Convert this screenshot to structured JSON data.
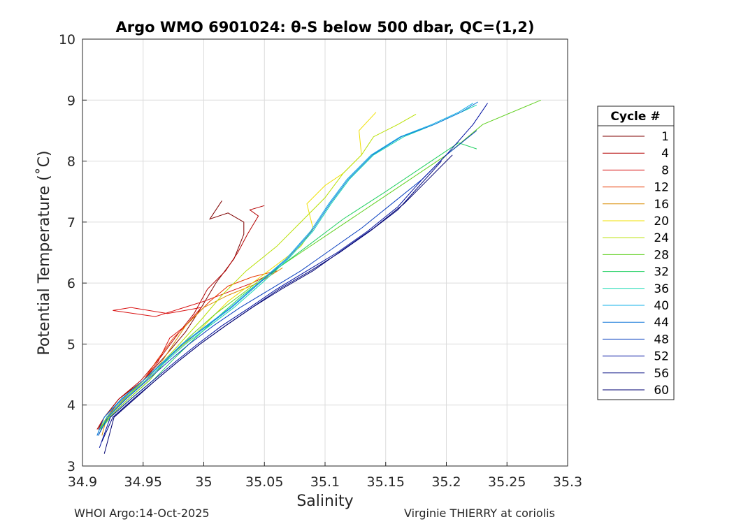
{
  "chart_data": {
    "type": "line",
    "title": "Argo WMO 6901024: θ-S below 500 dbar,  QC=(1,2)",
    "xlabel": "Salinity",
    "ylabel": "Potential Temperature (˚C)",
    "xlim": [
      34.9,
      35.3
    ],
    "ylim": [
      3,
      10
    ],
    "x_ticks": [
      "34.9",
      "34.95",
      "35",
      "35.05",
      "35.1",
      "35.15",
      "35.2",
      "35.25",
      "35.3"
    ],
    "y_ticks": [
      "3",
      "4",
      "5",
      "6",
      "7",
      "8",
      "9",
      "10"
    ],
    "grid": true,
    "legend": {
      "title": "Cycle #",
      "placement": "right-outside",
      "entries": [
        "1",
        "4",
        "8",
        "12",
        "16",
        "20",
        "24",
        "28",
        "32",
        "36",
        "40",
        "44",
        "48",
        "52",
        "56",
        "60"
      ]
    },
    "colors": [
      "#7f0000",
      "#b40000",
      "#d81010",
      "#e83a00",
      "#d98c00",
      "#f0e000",
      "#b8e000",
      "#60d020",
      "#20d060",
      "#10d8b0",
      "#10b0e8",
      "#1478d8",
      "#0a40c0",
      "#0010a0",
      "#000880",
      "#000070"
    ],
    "series": [
      {
        "name": "1",
        "x": [
          34.913,
          34.918,
          34.93,
          34.95,
          34.968,
          34.985,
          34.998,
          35.01,
          35.025,
          35.033,
          35.033,
          35.02,
          35.005,
          35.015
        ],
        "y": [
          3.6,
          3.8,
          4.1,
          4.4,
          4.8,
          5.2,
          5.6,
          6.0,
          6.4,
          6.8,
          7.0,
          7.15,
          7.05,
          7.35
        ]
      },
      {
        "name": "4",
        "x": [
          34.912,
          34.918,
          34.93,
          34.948,
          34.965,
          34.98,
          34.992,
          35.003,
          35.018,
          35.028,
          35.036,
          35.045,
          35.038,
          35.05
        ],
        "y": [
          3.6,
          3.8,
          4.1,
          4.4,
          4.8,
          5.2,
          5.5,
          5.9,
          6.2,
          6.5,
          6.8,
          7.1,
          7.2,
          7.27
        ]
      },
      {
        "name": "8",
        "x": [
          34.914,
          34.92,
          34.932,
          34.95,
          34.962,
          34.972,
          34.985,
          34.998,
          34.97,
          34.94,
          34.925,
          34.96,
          35.0,
          35.04,
          35.06
        ],
        "y": [
          3.6,
          3.8,
          4.1,
          4.4,
          4.7,
          5.1,
          5.3,
          5.6,
          5.5,
          5.6,
          5.55,
          5.45,
          5.7,
          6.0,
          6.2
        ]
      },
      {
        "name": "12",
        "x": [
          34.915,
          34.92,
          34.935,
          34.95,
          34.962,
          34.975,
          34.99,
          35.005,
          35.02,
          35.04,
          35.06
        ],
        "y": [
          3.6,
          3.8,
          4.1,
          4.4,
          4.75,
          5.1,
          5.4,
          5.7,
          5.95,
          6.1,
          6.2
        ]
      },
      {
        "name": "16",
        "x": [
          34.916,
          34.92,
          34.934,
          34.952,
          34.965,
          34.975,
          34.985,
          35.0,
          35.02,
          35.045,
          35.065
        ],
        "y": [
          3.5,
          3.8,
          4.1,
          4.4,
          4.7,
          5.0,
          5.3,
          5.6,
          5.8,
          6.0,
          6.25
        ]
      },
      {
        "name": "20",
        "x": [
          34.915,
          34.922,
          34.938,
          34.955,
          34.972,
          34.99,
          35.005,
          35.02,
          35.04,
          35.06,
          35.08,
          35.09,
          35.085,
          35.1,
          35.115,
          35.13,
          35.128,
          35.142
        ],
        "y": [
          3.6,
          3.8,
          4.1,
          4.4,
          4.8,
          5.1,
          5.4,
          5.7,
          6.0,
          6.3,
          6.6,
          6.9,
          7.3,
          7.6,
          7.8,
          8.1,
          8.5,
          8.8
        ]
      },
      {
        "name": "24",
        "x": [
          34.914,
          34.92,
          34.935,
          34.95,
          34.966,
          34.98,
          34.998,
          35.015,
          35.035,
          35.06,
          35.08,
          35.1,
          35.115,
          35.13,
          35.14,
          35.16,
          35.175
        ],
        "y": [
          3.6,
          3.8,
          4.1,
          4.4,
          4.7,
          5.0,
          5.4,
          5.8,
          6.2,
          6.6,
          7.0,
          7.4,
          7.8,
          8.1,
          8.4,
          8.6,
          8.77
        ]
      },
      {
        "name": "28",
        "x": [
          34.914,
          34.922,
          34.938,
          34.955,
          34.972,
          34.99,
          35.01,
          35.03,
          35.05,
          35.08,
          35.11,
          35.14,
          35.17,
          35.2,
          35.23,
          35.278
        ],
        "y": [
          3.6,
          3.8,
          4.1,
          4.4,
          4.8,
          5.15,
          5.5,
          5.8,
          6.1,
          6.5,
          6.9,
          7.3,
          7.7,
          8.1,
          8.6,
          9.0
        ]
      },
      {
        "name": "32",
        "x": [
          34.915,
          34.923,
          34.94,
          34.958,
          34.975,
          34.993,
          35.012,
          35.032,
          35.055,
          35.085,
          35.115,
          35.15,
          35.18,
          35.21,
          35.225
        ],
        "y": [
          3.6,
          3.8,
          4.1,
          4.4,
          4.75,
          5.1,
          5.45,
          5.8,
          6.15,
          6.6,
          7.05,
          7.5,
          7.9,
          8.3,
          8.2
        ]
      },
      {
        "name": "36",
        "x": [
          34.913,
          34.92,
          34.935,
          34.952,
          34.968,
          34.985,
          35.005,
          35.025,
          35.048,
          35.07,
          35.09,
          35.105,
          35.12,
          35.14,
          35.165,
          35.19,
          35.212,
          35.225
        ],
        "y": [
          3.5,
          3.8,
          4.1,
          4.4,
          4.7,
          5.0,
          5.3,
          5.6,
          6.0,
          6.4,
          6.85,
          7.3,
          7.7,
          8.1,
          8.4,
          8.6,
          8.8,
          8.92
        ]
      },
      {
        "name": "40",
        "x": [
          34.912,
          34.918,
          34.932,
          34.95,
          34.966,
          34.982,
          35.002,
          35.022,
          35.045,
          35.068,
          35.088,
          35.103,
          35.118,
          35.138,
          35.162,
          35.188,
          35.21,
          35.222
        ],
        "y": [
          3.5,
          3.8,
          4.1,
          4.4,
          4.7,
          5.0,
          5.3,
          5.6,
          6.0,
          6.4,
          6.85,
          7.3,
          7.7,
          8.1,
          8.4,
          8.6,
          8.8,
          8.95
        ]
      },
      {
        "name": "44",
        "x": [
          34.912,
          34.918,
          34.933,
          34.95,
          34.967,
          34.983,
          35.003,
          35.023,
          35.046,
          35.069,
          35.089,
          35.104,
          35.119,
          35.139,
          35.163,
          35.19,
          35.212,
          35.226
        ],
        "y": [
          3.5,
          3.8,
          4.1,
          4.4,
          4.7,
          5.0,
          5.3,
          5.6,
          6.0,
          6.4,
          6.85,
          7.3,
          7.7,
          8.1,
          8.4,
          8.6,
          8.8,
          8.97
        ]
      },
      {
        "name": "48",
        "x": [
          34.913,
          34.921,
          34.936,
          34.953,
          34.97,
          34.988,
          35.008,
          35.03,
          35.055,
          35.08,
          35.105,
          35.13,
          35.155,
          35.18,
          35.2,
          35.225
        ],
        "y": [
          3.5,
          3.8,
          4.1,
          4.4,
          4.7,
          5.0,
          5.3,
          5.6,
          5.9,
          6.2,
          6.55,
          6.9,
          7.3,
          7.7,
          8.1,
          8.5
        ]
      },
      {
        "name": "52",
        "x": [
          34.914,
          34.923,
          34.94,
          34.958,
          34.976,
          34.995,
          35.015,
          35.038,
          35.06,
          35.085,
          35.11,
          35.135,
          35.16,
          35.18,
          35.2,
          35.222,
          35.234
        ],
        "y": [
          3.3,
          3.8,
          4.1,
          4.4,
          4.7,
          5.0,
          5.3,
          5.6,
          5.9,
          6.2,
          6.5,
          6.85,
          7.25,
          7.7,
          8.1,
          8.6,
          8.95
        ]
      },
      {
        "name": "56",
        "x": [
          34.916,
          34.925,
          34.942,
          34.96,
          34.978,
          34.997,
          35.018,
          35.04,
          35.062,
          35.088,
          35.112,
          35.137,
          35.16,
          35.178,
          35.196
        ],
        "y": [
          3.4,
          3.8,
          4.1,
          4.4,
          4.7,
          5.0,
          5.3,
          5.6,
          5.9,
          6.2,
          6.5,
          6.85,
          7.2,
          7.6,
          8.0
        ]
      },
      {
        "name": "60",
        "x": [
          34.918,
          34.926,
          34.943,
          34.96,
          34.978,
          34.997,
          35.018,
          35.04,
          35.064,
          35.09,
          35.115,
          35.14,
          35.165,
          35.185,
          35.205
        ],
        "y": [
          3.2,
          3.8,
          4.1,
          4.4,
          4.7,
          5.0,
          5.3,
          5.6,
          5.9,
          6.2,
          6.55,
          6.9,
          7.3,
          7.7,
          8.1
        ]
      }
    ]
  },
  "footer": {
    "left": "WHOI Argo:14-Oct-2025",
    "right": "Virginie THIERRY at coriolis"
  }
}
